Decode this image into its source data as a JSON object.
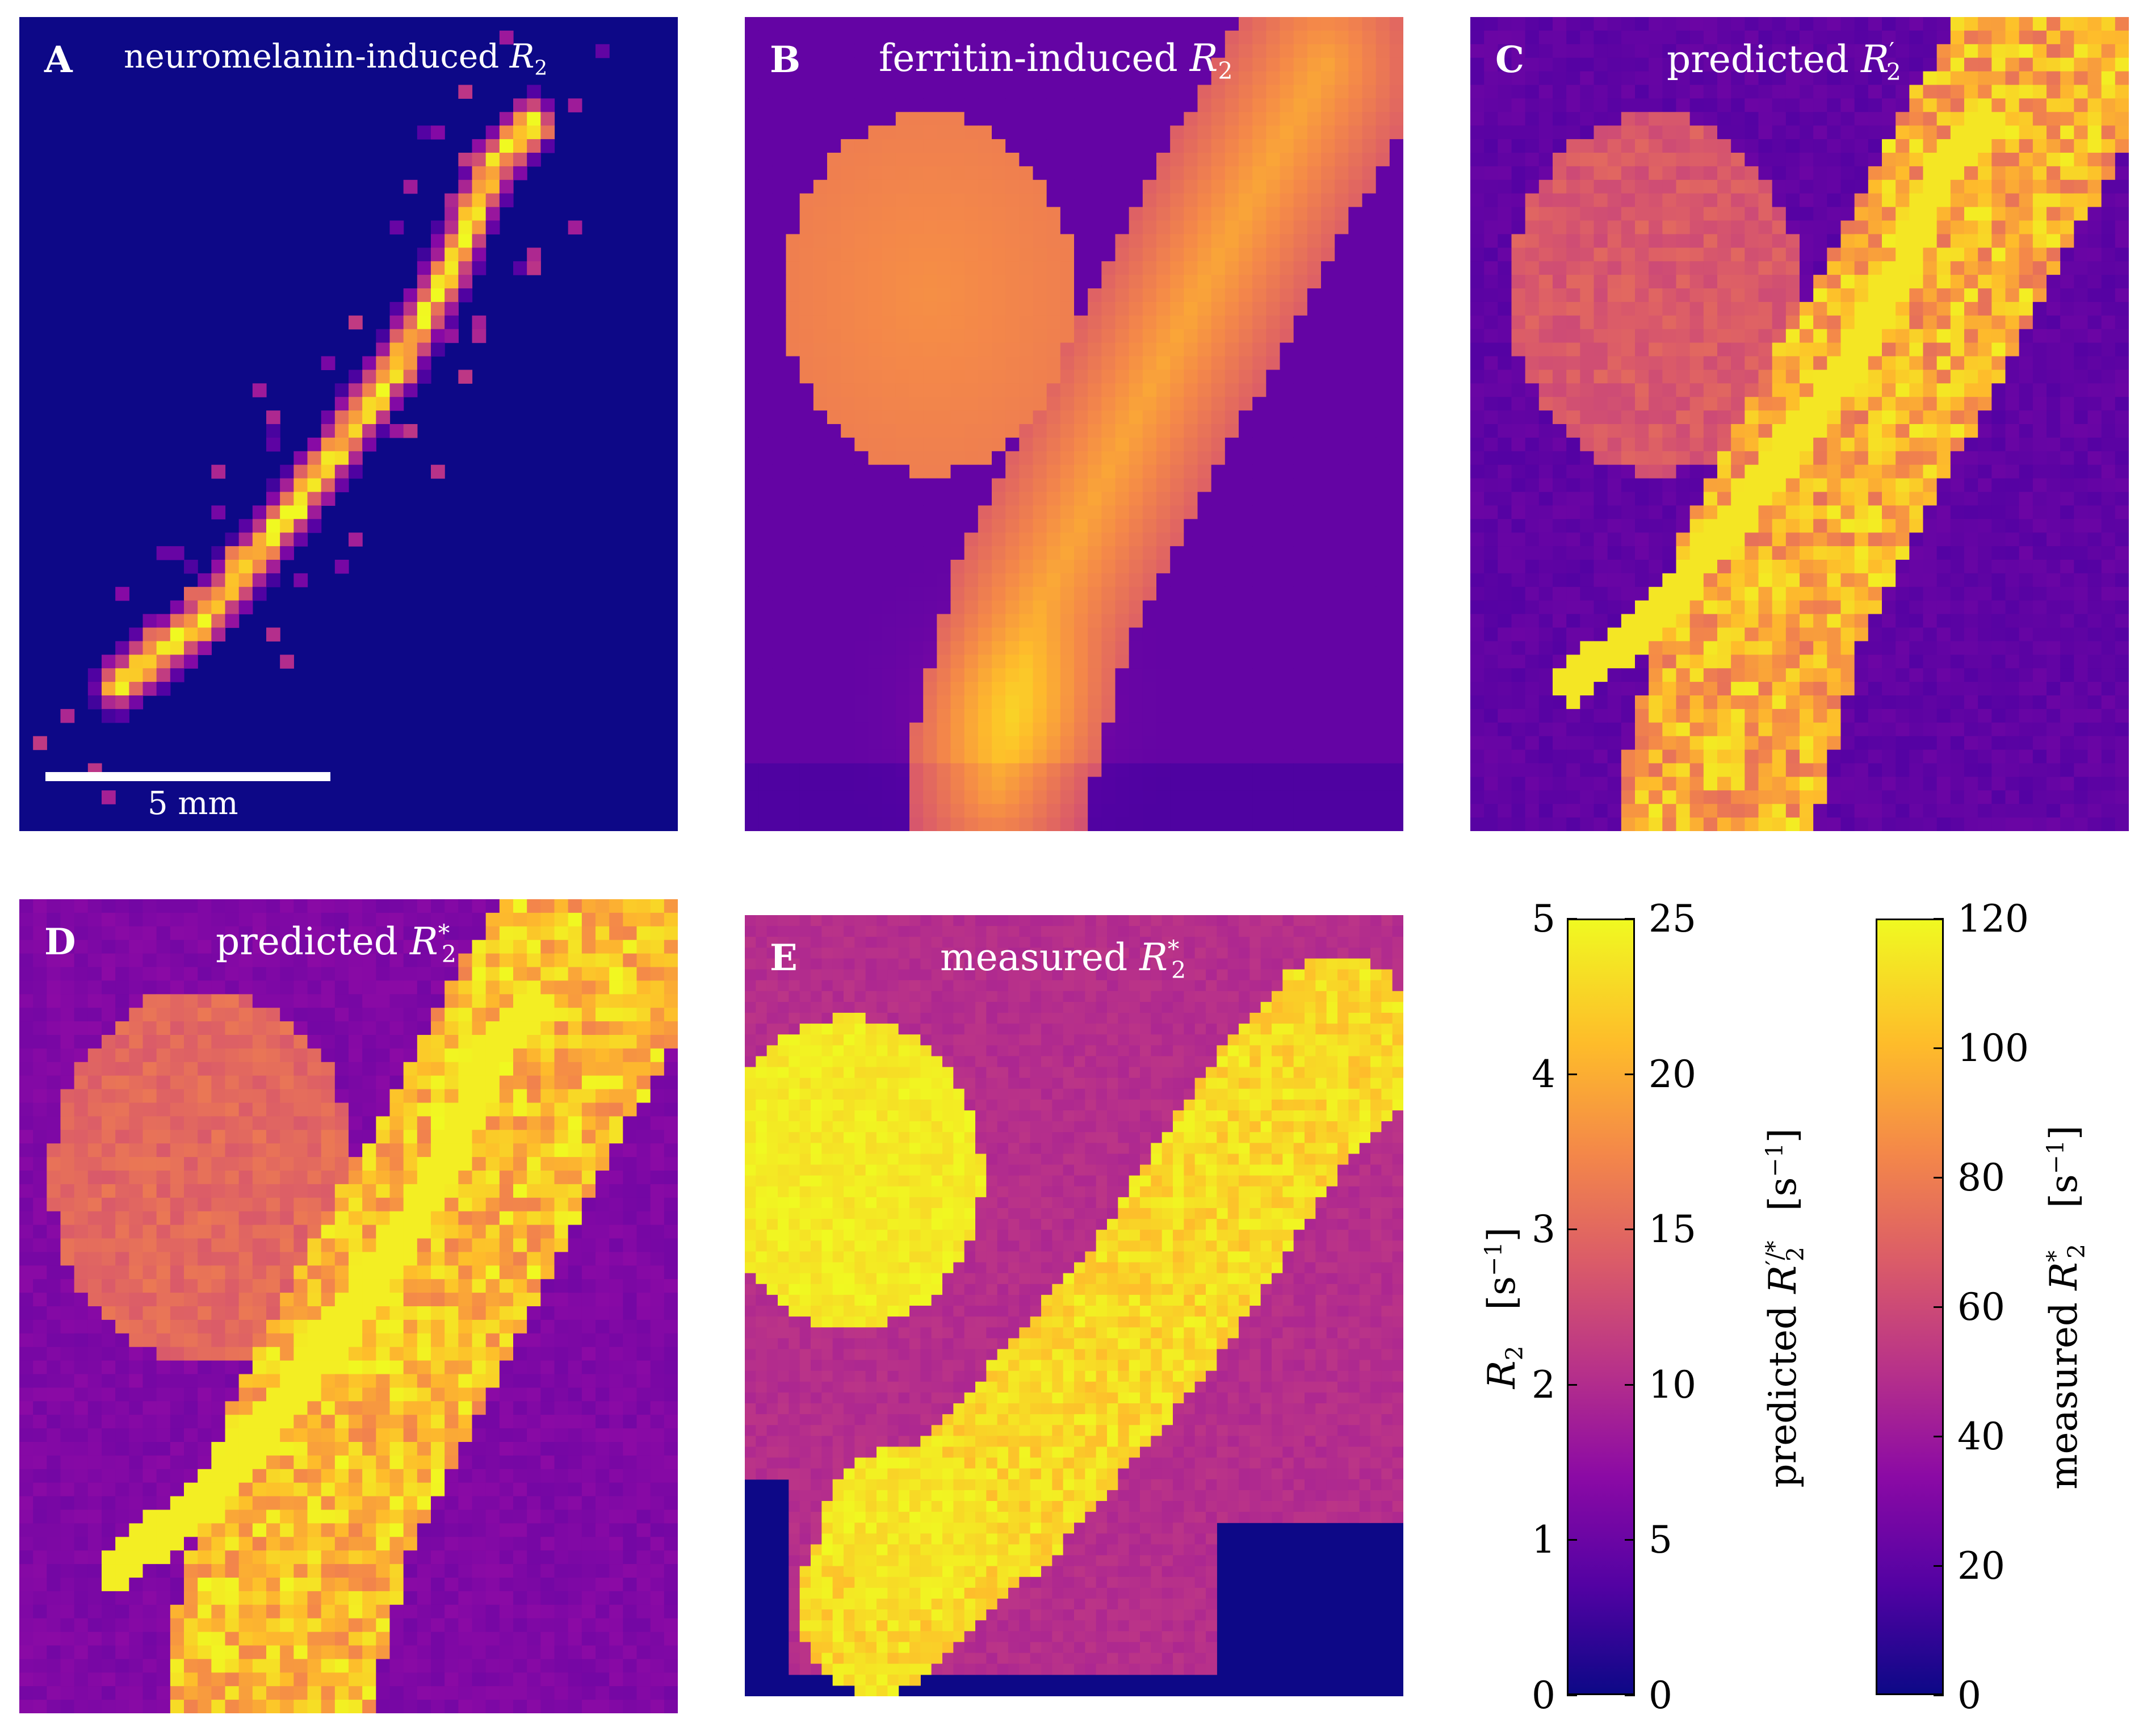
{
  "chart_data": [
    {
      "type": "heatmap",
      "panel_label": "A",
      "title": "neuromelanin-induced R2",
      "scale_bar": "5 mm",
      "colormap": "plasma",
      "range": [
        0,
        5
      ],
      "units": "s^-1"
    },
    {
      "type": "heatmap",
      "panel_label": "B",
      "title": "ferritin-induced R2",
      "colormap": "plasma",
      "range": [
        0,
        5
      ],
      "units": "s^-1"
    },
    {
      "type": "heatmap",
      "panel_label": "C",
      "title": "predicted R2'",
      "colormap": "plasma",
      "range": [
        0,
        25
      ],
      "units": "s^-1"
    },
    {
      "type": "heatmap",
      "panel_label": "D",
      "title": "predicted R2*",
      "colormap": "plasma",
      "range": [
        0,
        25
      ],
      "units": "s^-1"
    },
    {
      "type": "heatmap",
      "panel_label": "E",
      "title": "measured R2*",
      "colormap": "plasma",
      "range": [
        0,
        120
      ],
      "units": "s^-1"
    }
  ],
  "colorbars": [
    {
      "name": "R2 / predicted R2'/*",
      "left_label": "R2 [s^-1]",
      "right_label": "predicted R2'/* [s^-1]",
      "left_ticks": [
        "0",
        "1",
        "2",
        "3",
        "4",
        "5"
      ],
      "right_ticks": [
        "0",
        "5",
        "10",
        "15",
        "20",
        "25"
      ]
    },
    {
      "name": "measured R2*",
      "right_label": "measured R2* [s^-1]",
      "right_ticks": [
        "0",
        "20",
        "40",
        "60",
        "80",
        "100",
        "120"
      ]
    }
  ],
  "colors": {
    "background": "#0d0887",
    "low": "#0d0887",
    "mid": "#b83289",
    "high": "#f0f921"
  }
}
